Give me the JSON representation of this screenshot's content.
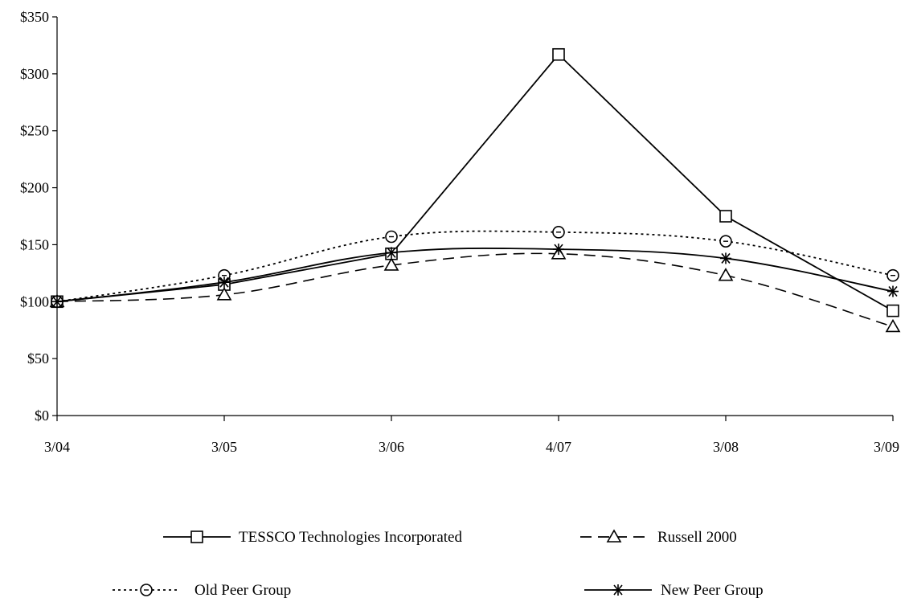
{
  "chart_data": {
    "type": "line",
    "title": "",
    "xlabel": "",
    "ylabel": "",
    "categories": [
      "3/04",
      "3/05",
      "3/06",
      "4/07",
      "3/08",
      "3/09"
    ],
    "y_ticks": [
      "$0",
      "$50",
      "$100",
      "$150",
      "$200",
      "$250",
      "$300",
      "$350"
    ],
    "ylim": [
      0,
      350
    ],
    "grid": false,
    "legend_position": "bottom",
    "series": [
      {
        "name": "TESSCO Technologies Incorporated",
        "values": [
          100,
          115,
          142,
          317,
          175,
          92
        ],
        "marker": "square-icon",
        "line_style": "solid",
        "color": "#000000"
      },
      {
        "name": "Russell 2000",
        "values": [
          100,
          106,
          132,
          142,
          123,
          78
        ],
        "marker": "triangle-icon",
        "line_style": "dashed",
        "color": "#000000"
      },
      {
        "name": "Old Peer Group",
        "values": [
          100,
          123,
          157,
          161,
          153,
          123
        ],
        "marker": "circle-dot-icon",
        "line_style": "dotted",
        "color": "#000000"
      },
      {
        "name": "New Peer Group",
        "values": [
          100,
          117,
          143,
          146,
          138,
          109
        ],
        "marker": "asterisk-icon",
        "line_style": "solid",
        "color": "#000000"
      }
    ]
  }
}
